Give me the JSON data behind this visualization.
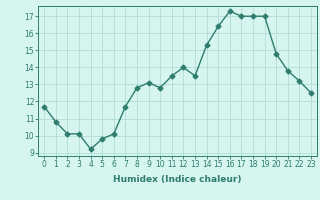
{
  "x": [
    0,
    1,
    2,
    3,
    4,
    5,
    6,
    7,
    8,
    9,
    10,
    11,
    12,
    13,
    14,
    15,
    16,
    17,
    18,
    19,
    20,
    21,
    22,
    23
  ],
  "y": [
    11.7,
    10.8,
    10.1,
    10.1,
    9.2,
    9.8,
    10.1,
    11.7,
    12.8,
    13.1,
    12.8,
    13.5,
    14.0,
    13.5,
    15.3,
    16.4,
    17.3,
    17.0,
    17.0,
    17.0,
    14.8,
    13.8,
    13.2,
    12.5
  ],
  "line_color": "#2e7d6e",
  "marker": "D",
  "marker_size": 2.5,
  "bg_color": "#d6f5ef",
  "grid_color": "#b0ddd5",
  "xlabel": "Humidex (Indice chaleur)",
  "ylabel": "",
  "xlim": [
    -0.5,
    23.5
  ],
  "ylim": [
    8.8,
    17.6
  ],
  "yticks": [
    9,
    10,
    11,
    12,
    13,
    14,
    15,
    16,
    17
  ],
  "xtick_labels": [
    "0",
    "1",
    "2",
    "3",
    "4",
    "5",
    "6",
    "7",
    "8",
    "9",
    "10",
    "11",
    "12",
    "13",
    "14",
    "15",
    "16",
    "17",
    "18",
    "19",
    "20",
    "21",
    "22",
    "23"
  ],
  "xlabel_fontsize": 6.5,
  "tick_fontsize": 5.5,
  "line_width": 1.0
}
